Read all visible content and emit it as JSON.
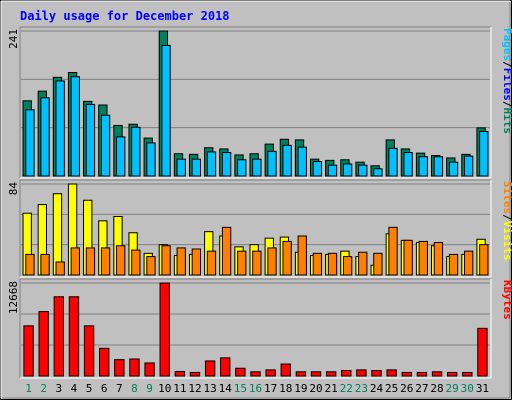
{
  "chart_data": {
    "type": "bar",
    "title": "Daily usage for December 2018",
    "days": [
      "1",
      "2",
      "3",
      "4",
      "5",
      "6",
      "7",
      "8",
      "9",
      "10",
      "11",
      "12",
      "13",
      "14",
      "15",
      "16",
      "17",
      "18",
      "19",
      "20",
      "21",
      "22",
      "23",
      "24",
      "25",
      "26",
      "27",
      "28",
      "29",
      "30",
      "31"
    ],
    "weekend_days": [
      "1",
      "2",
      "8",
      "9",
      "15",
      "16",
      "22",
      "23",
      "29",
      "30"
    ],
    "colors": {
      "background": "#c0c0c0",
      "title": "#0000ff",
      "weekday": "#000000",
      "weekend": "#00805c",
      "hits": "#00805c",
      "files": "#00c0ff",
      "pages": "#00c0ff",
      "visits": "#ffff00",
      "sites": "#ff8000",
      "kbytes": "#ff0000",
      "grid": "#808080"
    },
    "panels": [
      {
        "id": "requests",
        "ymax_label": "241",
        "ylim": [
          0,
          241
        ],
        "legend": [
          {
            "text": "Pages",
            "color": "#00c0ff"
          },
          {
            "text": "/",
            "color": "#000000"
          },
          {
            "text": "Files",
            "color": "#0000ff"
          },
          {
            "text": "/",
            "color": "#000000"
          },
          {
            "text": "Hits",
            "color": "#00805c"
          }
        ],
        "series": [
          {
            "name": "Hits",
            "color": "#00805c",
            "values": [
              125,
              141,
              164,
              172,
              124,
              118,
              84,
              86,
              63,
              241,
              37,
              36,
              47,
              45,
              35,
              37,
              53,
              61,
              60,
              28,
              26,
              27,
              23,
              17,
              60,
              45,
              38,
              34,
              30,
              36,
              80
            ]
          },
          {
            "name": "Files",
            "color": "#00c0ff",
            "values": [
              110,
              130,
              158,
              165,
              119,
              101,
              65,
              81,
              55,
              217,
              28,
              28,
              40,
              39,
              27,
              28,
              41,
              51,
              48,
              24,
              18,
              20,
              18,
              12,
              46,
              39,
              32,
              32,
              23,
              33,
              74
            ]
          }
        ]
      },
      {
        "id": "visits",
        "ymax_label": "84",
        "ylim": [
          0,
          84
        ],
        "legend": [
          {
            "text": "Sites",
            "color": "#ff8000"
          },
          {
            "text": "/",
            "color": "#000000"
          },
          {
            "text": "Visits",
            "color": "#ffff00"
          }
        ],
        "series": [
          {
            "name": "Visits",
            "color": "#ffff00",
            "values": [
              57,
              65,
              75,
              84,
              69,
              50,
              54,
              39,
              20,
              28,
              18,
              19,
              40,
              36,
              26,
              28,
              34,
              35,
              21,
              18,
              19,
              22,
              17,
              9,
              38,
              32,
              30,
              27,
              17,
              19,
              33
            ]
          },
          {
            "name": "Sites",
            "color": "#ff8000",
            "values": [
              19,
              19,
              12,
              25,
              25,
              25,
              27,
              23,
              17,
              27,
              25,
              24,
              22,
              44,
              22,
              22,
              25,
              31,
              36,
              20,
              20,
              17,
              21,
              20,
              44,
              32,
              31,
              30,
              19,
              22,
              28
            ]
          }
        ]
      },
      {
        "id": "kbytes",
        "ymax_label": "12668",
        "ylim": [
          0,
          12668
        ],
        "legend": [
          {
            "text": "KBytes",
            "color": "#ff0000"
          }
        ],
        "series": [
          {
            "name": "KBytes",
            "color": "#ff0000",
            "values": [
              6833,
              8776,
              10795,
              10795,
              6833,
              3770,
              2228,
              2316,
              1777,
              12668,
              617,
              485,
              2052,
              2471,
              1057,
              573,
              837,
              1630,
              573,
              573,
              573,
              749,
              837,
              749,
              837,
              485,
              485,
              573,
              485,
              485,
              6492
            ]
          }
        ]
      }
    ]
  }
}
